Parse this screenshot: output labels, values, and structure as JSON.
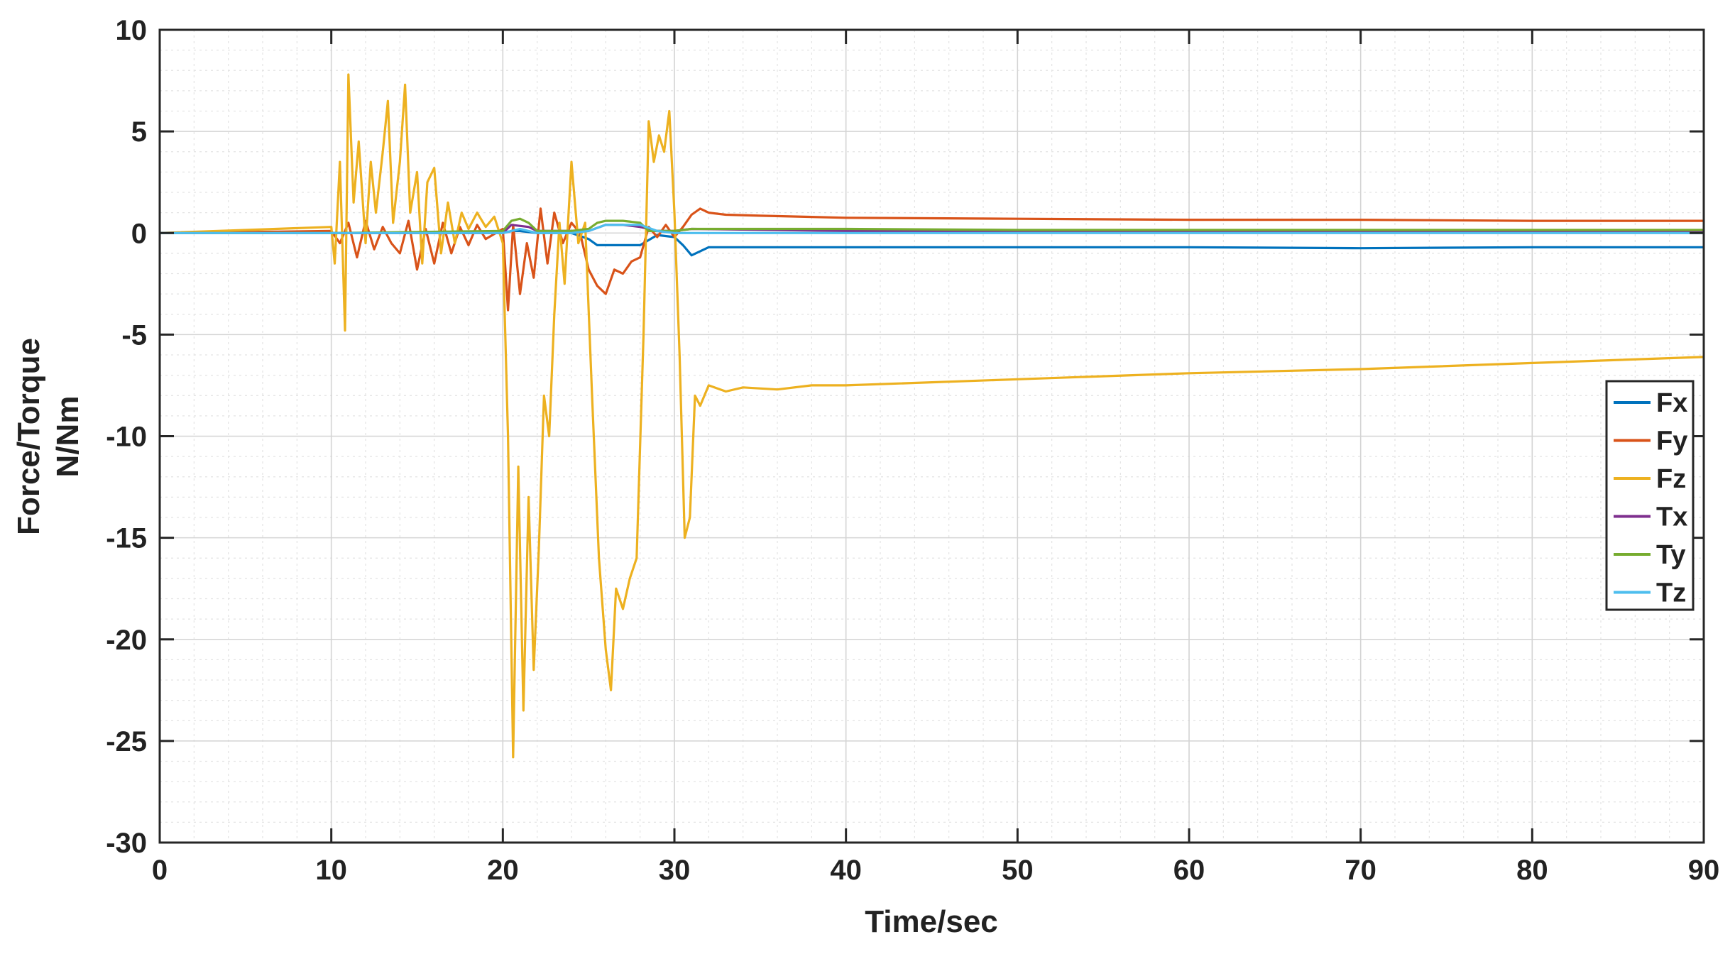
{
  "chart_data": {
    "type": "line",
    "title": "",
    "xlabel": "Time/sec",
    "ylabel_lines": [
      "Force/Torque",
      "N/Nm"
    ],
    "xlim": [
      0,
      90
    ],
    "ylim": [
      -30,
      10
    ],
    "xticks": [
      0,
      10,
      20,
      30,
      40,
      50,
      60,
      70,
      80,
      90
    ],
    "yticks": [
      -30,
      -25,
      -20,
      -15,
      -10,
      -5,
      0,
      5,
      10
    ],
    "xtick_labels": [
      "0",
      "10",
      "20",
      "30",
      "40",
      "50",
      "60",
      "70",
      "80",
      "90"
    ],
    "ytick_labels": [
      "-30",
      "-25",
      "-20",
      "-15",
      "-10",
      "-5",
      "0",
      "5",
      "10"
    ],
    "grid": true,
    "minor_grid": true,
    "legend_position": "right",
    "series": [
      {
        "name": "Fx",
        "color": "#0072BD",
        "x": [
          0,
          10,
          20,
          20.5,
          21,
          22,
          23,
          24,
          25,
          25.5,
          26,
          27,
          28,
          29,
          30,
          30.5,
          31,
          32,
          35,
          40,
          50,
          60,
          70,
          80,
          90
        ],
        "y": [
          0,
          0,
          0,
          0.1,
          0.1,
          0,
          0,
          0,
          -0.3,
          -0.6,
          -0.6,
          -0.6,
          -0.6,
          -0.1,
          -0.2,
          -0.6,
          -1.1,
          -0.7,
          -0.7,
          -0.7,
          -0.7,
          -0.7,
          -0.75,
          -0.7,
          -0.7
        ]
      },
      {
        "name": "Fy",
        "color": "#D95319",
        "x": [
          0,
          10,
          10.5,
          11,
          11.5,
          12,
          12.5,
          13,
          13.5,
          14,
          14.5,
          15,
          15.5,
          16,
          16.5,
          17,
          17.5,
          18,
          18.5,
          19,
          20,
          20.3,
          20.6,
          21,
          21.4,
          21.8,
          22.2,
          22.6,
          23,
          23.5,
          24,
          24.5,
          25,
          25.5,
          26,
          26.5,
          27,
          27.5,
          28,
          28.5,
          29,
          29.5,
          30,
          30.5,
          31,
          31.5,
          32,
          33,
          35,
          40,
          50,
          60,
          70,
          80,
          90
        ],
        "y": [
          0,
          0.1,
          -0.5,
          0.5,
          -1.2,
          0.6,
          -0.8,
          0.3,
          -0.5,
          -1.0,
          0.6,
          -1.8,
          0.2,
          -1.5,
          0.5,
          -1.0,
          0.3,
          -0.6,
          0.4,
          -0.3,
          0.2,
          -3.8,
          0.4,
          -3.0,
          -0.5,
          -2.2,
          1.2,
          -1.5,
          1.0,
          -0.5,
          0.5,
          0,
          -1.8,
          -2.6,
          -3.0,
          -1.8,
          -2.0,
          -1.4,
          -1.2,
          0.3,
          -0.2,
          0.4,
          -0.2,
          0.3,
          0.9,
          1.2,
          1.0,
          0.9,
          0.85,
          0.75,
          0.7,
          0.65,
          0.65,
          0.6,
          0.6
        ]
      },
      {
        "name": "Fz",
        "color": "#EDB120",
        "x": [
          0,
          10,
          10.2,
          10.5,
          10.8,
          11.0,
          11.3,
          11.6,
          12.0,
          12.3,
          12.6,
          13.0,
          13.3,
          13.6,
          14.0,
          14.3,
          14.6,
          15.0,
          15.3,
          15.6,
          16.0,
          16.4,
          16.8,
          17.2,
          17.6,
          18.0,
          18.5,
          19.0,
          19.5,
          20.0,
          20.3,
          20.6,
          20.9,
          21.2,
          21.5,
          21.8,
          22.1,
          22.4,
          22.7,
          23.0,
          23.3,
          23.6,
          24.0,
          24.4,
          24.8,
          25.2,
          25.6,
          26.0,
          26.3,
          26.6,
          27.0,
          27.4,
          27.8,
          28.2,
          28.5,
          28.8,
          29.1,
          29.4,
          29.7,
          30.0,
          30.3,
          30.6,
          30.9,
          31.2,
          31.5,
          32.0,
          33.0,
          34.0,
          36.0,
          38.0,
          40.0,
          50.0,
          60.0,
          70.0,
          80.0,
          90.0
        ],
        "y": [
          0,
          0.3,
          -1.5,
          3.5,
          -4.8,
          7.8,
          1.5,
          4.5,
          -0.5,
          3.5,
          1.0,
          4.0,
          6.5,
          0.5,
          3.5,
          7.3,
          1.0,
          3.0,
          -1.5,
          2.5,
          3.2,
          -1.0,
          1.5,
          -0.5,
          1.0,
          0.2,
          1.0,
          0.3,
          0.8,
          -0.5,
          -10.0,
          -25.8,
          -11.5,
          -23.5,
          -13.0,
          -21.5,
          -15.5,
          -8.0,
          -10.0,
          -4.0,
          0.5,
          -2.5,
          3.5,
          -0.5,
          0.5,
          -8.0,
          -16.0,
          -20.5,
          -22.5,
          -17.5,
          -18.5,
          -17.0,
          -16.0,
          -5.0,
          5.5,
          3.5,
          4.8,
          4.0,
          6.0,
          1.0,
          -6.0,
          -15.0,
          -14.0,
          -8.0,
          -8.5,
          -7.5,
          -7.8,
          -7.6,
          -7.7,
          -7.5,
          -7.5,
          -7.2,
          -6.9,
          -6.7,
          -6.4,
          -6.1
        ]
      },
      {
        "name": "Tx",
        "color": "#7E2F8E",
        "x": [
          0,
          10,
          20,
          20.5,
          21.5,
          22,
          24,
          25,
          26,
          27,
          28,
          29,
          30,
          31,
          40,
          50,
          60,
          70,
          80,
          90
        ],
        "y": [
          0,
          0,
          0,
          0.4,
          0.3,
          0.1,
          0.1,
          0.1,
          0.4,
          0.4,
          0.3,
          0.1,
          0.1,
          0.2,
          0.1,
          0.1,
          0.1,
          0.1,
          0.1,
          0.1
        ]
      },
      {
        "name": "Ty",
        "color": "#77AC30",
        "x": [
          0,
          10,
          20,
          20.5,
          21,
          21.5,
          22,
          24,
          25,
          25.5,
          26,
          27,
          28,
          28.5,
          29,
          30,
          31,
          40,
          50,
          60,
          70,
          80,
          90
        ],
        "y": [
          0,
          0,
          0.1,
          0.6,
          0.7,
          0.5,
          0.1,
          0.1,
          0.2,
          0.5,
          0.6,
          0.6,
          0.5,
          0.1,
          0.1,
          0.1,
          0.2,
          0.2,
          0.15,
          0.15,
          0.15,
          0.15,
          0.15
        ]
      },
      {
        "name": "Tz",
        "color": "#4DBEEE",
        "x": [
          0,
          10,
          20,
          21,
          22,
          24,
          25,
          26,
          27,
          28,
          29,
          30,
          31,
          40,
          50,
          60,
          70,
          80,
          90
        ],
        "y": [
          0,
          0,
          0,
          0.2,
          0,
          0,
          0.1,
          0.4,
          0.4,
          0.4,
          0.1,
          0,
          0,
          0,
          0,
          0,
          0,
          0,
          0
        ]
      }
    ]
  }
}
